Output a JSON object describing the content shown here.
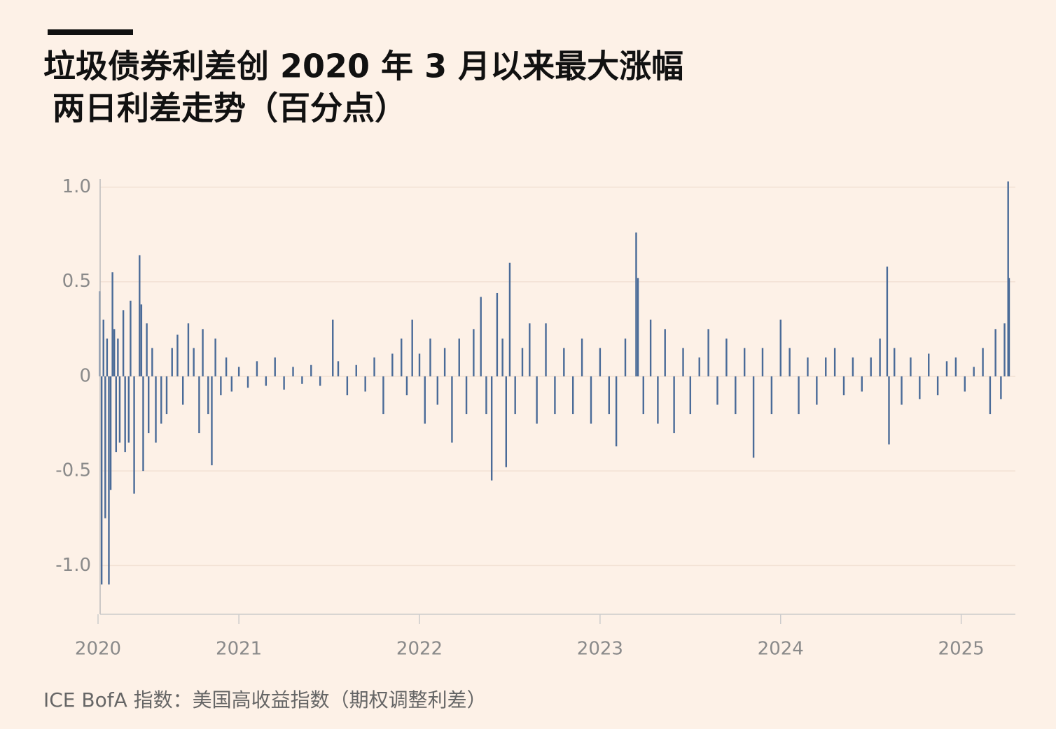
{
  "chart_data": {
    "type": "bar",
    "title": "垃圾债券利差创 2020 年 3 月以来最大涨幅",
    "subtitle": "两日利差走势（百分点）",
    "source": "ICE BofA 指数：美国高收益指数（期权调整利差）",
    "color": "#4a6b98",
    "grid": true,
    "x": [
      2020.23,
      2020.24,
      2020.25,
      2020.26,
      2020.27,
      2020.28,
      2020.29,
      2020.3,
      2020.31,
      2020.32,
      2020.33,
      2020.34,
      2020.36,
      2020.37,
      2020.39,
      2020.4,
      2020.42,
      2020.45,
      2020.46,
      2020.47,
      2020.49,
      2020.5,
      2020.52,
      2020.54,
      2020.57,
      2020.6,
      2020.63,
      2020.66,
      2020.69,
      2020.72,
      2020.75,
      2020.78,
      2020.8,
      2020.83,
      2020.85,
      2020.87,
      2020.9,
      2020.93,
      2020.96,
      2021.0,
      2021.05,
      2021.1,
      2021.15,
      2021.2,
      2021.25,
      2021.3,
      2021.35,
      2021.4,
      2021.45,
      2021.52,
      2021.55,
      2021.6,
      2021.65,
      2021.7,
      2021.75,
      2021.8,
      2021.85,
      2021.9,
      2021.93,
      2021.96,
      2022.0,
      2022.03,
      2022.06,
      2022.1,
      2022.14,
      2022.18,
      2022.22,
      2022.26,
      2022.3,
      2022.34,
      2022.37,
      2022.4,
      2022.43,
      2022.46,
      2022.48,
      2022.5,
      2022.53,
      2022.57,
      2022.61,
      2022.65,
      2022.7,
      2022.75,
      2022.8,
      2022.85,
      2022.9,
      2022.95,
      2023.0,
      2023.05,
      2023.09,
      2023.14,
      2023.2,
      2023.21,
      2023.24,
      2023.28,
      2023.32,
      2023.36,
      2023.41,
      2023.46,
      2023.5,
      2023.55,
      2023.6,
      2023.65,
      2023.7,
      2023.75,
      2023.8,
      2023.85,
      2023.9,
      2023.95,
      2024.0,
      2024.05,
      2024.1,
      2024.15,
      2024.2,
      2024.25,
      2024.3,
      2024.35,
      2024.4,
      2024.45,
      2024.5,
      2024.55,
      2024.59,
      2024.6,
      2024.63,
      2024.67,
      2024.72,
      2024.77,
      2024.82,
      2024.87,
      2024.92,
      2024.97,
      2025.02,
      2025.07,
      2025.12,
      2025.16,
      2025.19,
      2025.22,
      2025.24,
      2025.26,
      2025.265
    ],
    "values": [
      0.45,
      -1.1,
      0.3,
      -0.75,
      0.2,
      -1.1,
      -0.6,
      0.55,
      0.25,
      -0.4,
      0.2,
      -0.35,
      0.35,
      -0.4,
      -0.35,
      0.4,
      -0.62,
      0.64,
      0.38,
      -0.5,
      0.28,
      -0.3,
      0.15,
      -0.35,
      -0.25,
      -0.2,
      0.15,
      0.22,
      -0.15,
      0.28,
      0.15,
      -0.3,
      0.25,
      -0.2,
      -0.47,
      0.2,
      -0.1,
      0.1,
      -0.08,
      0.05,
      -0.06,
      0.08,
      -0.05,
      0.1,
      -0.07,
      0.05,
      -0.04,
      0.06,
      -0.05,
      0.3,
      0.08,
      -0.1,
      0.06,
      -0.08,
      0.1,
      -0.2,
      0.12,
      0.2,
      -0.1,
      0.3,
      0.12,
      -0.25,
      0.2,
      -0.15,
      0.15,
      -0.35,
      0.2,
      -0.2,
      0.25,
      0.42,
      -0.2,
      -0.55,
      0.44,
      0.2,
      -0.48,
      0.6,
      -0.2,
      0.15,
      0.28,
      -0.25,
      0.28,
      -0.2,
      0.15,
      -0.2,
      0.2,
      -0.25,
      0.15,
      -0.2,
      -0.37,
      0.2,
      0.76,
      0.52,
      -0.2,
      0.3,
      -0.25,
      0.25,
      -0.3,
      0.15,
      -0.2,
      0.1,
      0.25,
      -0.15,
      0.2,
      -0.2,
      0.15,
      -0.43,
      0.15,
      -0.2,
      0.3,
      0.15,
      -0.2,
      0.1,
      -0.15,
      0.1,
      0.15,
      -0.1,
      0.1,
      -0.08,
      0.1,
      0.2,
      0.58,
      -0.36,
      0.15,
      -0.15,
      0.1,
      -0.12,
      0.12,
      -0.1,
      0.08,
      0.1,
      -0.08,
      0.05,
      0.15,
      -0.2,
      0.25,
      -0.12,
      0.28,
      1.03,
      0.52
    ],
    "xlim": [
      2020.22,
      2025.3
    ],
    "xticks": [
      {
        "value": 2020.22,
        "label": "2020"
      },
      2021,
      2022,
      2023,
      2024,
      2025
    ],
    "ylim": [
      -1.25,
      1.04
    ],
    "yticks": [
      {
        "value": 1,
        "label": "1.0"
      },
      0.5,
      0,
      -0.5,
      {
        "value": -1,
        "label": "-1.0"
      }
    ]
  }
}
